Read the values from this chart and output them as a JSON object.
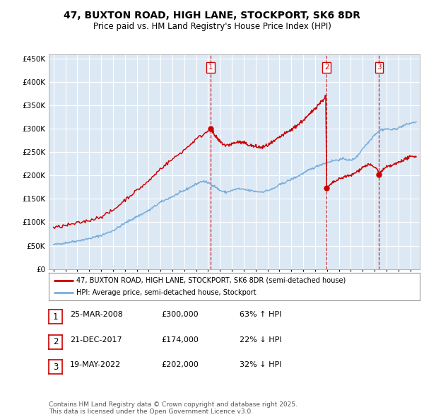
{
  "title": "47, BUXTON ROAD, HIGH LANE, STOCKPORT, SK6 8DR",
  "subtitle": "Price paid vs. HM Land Registry's House Price Index (HPI)",
  "ylim": [
    0,
    460000
  ],
  "yticks": [
    0,
    50000,
    100000,
    150000,
    200000,
    250000,
    300000,
    350000,
    400000,
    450000
  ],
  "ytick_labels": [
    "£0",
    "£50K",
    "£100K",
    "£150K",
    "£200K",
    "£250K",
    "£300K",
    "£350K",
    "£400K",
    "£450K"
  ],
  "xlim_left": 1994.6,
  "xlim_right": 2025.8,
  "chart_bg_color": "#dce9f5",
  "fig_bg_color": "#ffffff",
  "grid_color": "#ffffff",
  "red_color": "#cc0000",
  "blue_color": "#7aadda",
  "sale_dates": [
    2008.23,
    2017.97,
    2022.38
  ],
  "sale_prices": [
    300000,
    174000,
    202000
  ],
  "sale_labels": [
    "1",
    "2",
    "3"
  ],
  "legend_label_red": "47, BUXTON ROAD, HIGH LANE, STOCKPORT, SK6 8DR (semi-detached house)",
  "legend_label_blue": "HPI: Average price, semi-detached house, Stockport",
  "table_rows": [
    [
      "1",
      "25-MAR-2008",
      "£300,000",
      "63% ↑ HPI"
    ],
    [
      "2",
      "21-DEC-2017",
      "£174,000",
      "22% ↓ HPI"
    ],
    [
      "3",
      "19-MAY-2022",
      "£202,000",
      "32% ↓ HPI"
    ]
  ],
  "footer": "Contains HM Land Registry data © Crown copyright and database right 2025.\nThis data is licensed under the Open Government Licence v3.0.",
  "hpi_anchors": [
    [
      1995.0,
      52000
    ],
    [
      1996.0,
      56000
    ],
    [
      1997.0,
      60000
    ],
    [
      1998.0,
      65000
    ],
    [
      1999.0,
      72000
    ],
    [
      2000.0,
      82000
    ],
    [
      2001.0,
      98000
    ],
    [
      2002.0,
      112000
    ],
    [
      2003.0,
      125000
    ],
    [
      2004.0,
      143000
    ],
    [
      2005.0,
      155000
    ],
    [
      2006.0,
      168000
    ],
    [
      2007.0,
      182000
    ],
    [
      2007.5,
      188000
    ],
    [
      2008.0,
      185000
    ],
    [
      2008.5,
      178000
    ],
    [
      2009.0,
      168000
    ],
    [
      2009.5,
      164000
    ],
    [
      2010.0,
      168000
    ],
    [
      2010.5,
      172000
    ],
    [
      2011.0,
      170000
    ],
    [
      2011.5,
      168000
    ],
    [
      2012.0,
      166000
    ],
    [
      2012.5,
      165000
    ],
    [
      2013.0,
      168000
    ],
    [
      2013.5,
      172000
    ],
    [
      2014.0,
      180000
    ],
    [
      2014.5,
      186000
    ],
    [
      2015.0,
      192000
    ],
    [
      2015.5,
      198000
    ],
    [
      2016.0,
      205000
    ],
    [
      2016.5,
      212000
    ],
    [
      2017.0,
      218000
    ],
    [
      2017.5,
      224000
    ],
    [
      2018.0,
      228000
    ],
    [
      2018.5,
      232000
    ],
    [
      2019.0,
      234000
    ],
    [
      2019.5,
      236000
    ],
    [
      2020.0,
      232000
    ],
    [
      2020.5,
      240000
    ],
    [
      2021.0,
      258000
    ],
    [
      2021.5,
      272000
    ],
    [
      2022.0,
      288000
    ],
    [
      2022.5,
      298000
    ],
    [
      2023.0,
      300000
    ],
    [
      2023.5,
      298000
    ],
    [
      2024.0,
      302000
    ],
    [
      2024.5,
      308000
    ],
    [
      2025.0,
      312000
    ],
    [
      2025.5,
      315000
    ]
  ],
  "red_seg1_anchors": [
    [
      1995.0,
      88000
    ],
    [
      1996.0,
      93000
    ],
    [
      1997.0,
      98000
    ],
    [
      1998.0,
      104000
    ],
    [
      1999.0,
      112000
    ],
    [
      2000.0,
      125000
    ],
    [
      2001.0,
      148000
    ],
    [
      2002.0,
      168000
    ],
    [
      2003.0,
      188000
    ],
    [
      2004.0,
      215000
    ],
    [
      2005.0,
      235000
    ],
    [
      2006.0,
      255000
    ],
    [
      2007.0,
      278000
    ],
    [
      2007.8,
      292000
    ],
    [
      2008.23,
      300000
    ]
  ],
  "red_seg2_anchors": [
    [
      2008.23,
      300000
    ],
    [
      2008.6,
      284000
    ],
    [
      2009.0,
      272000
    ],
    [
      2009.5,
      264000
    ],
    [
      2010.0,
      268000
    ],
    [
      2010.5,
      272000
    ],
    [
      2011.0,
      270000
    ],
    [
      2011.5,
      265000
    ],
    [
      2012.0,
      262000
    ],
    [
      2012.5,
      260000
    ],
    [
      2013.0,
      265000
    ],
    [
      2013.5,
      272000
    ],
    [
      2014.0,
      282000
    ],
    [
      2014.5,
      290000
    ],
    [
      2015.0,
      298000
    ],
    [
      2015.5,
      308000
    ],
    [
      2016.0,
      318000
    ],
    [
      2016.5,
      330000
    ],
    [
      2017.0,
      345000
    ],
    [
      2017.5,
      358000
    ],
    [
      2017.9,
      370000
    ],
    [
      2017.97,
      174000
    ]
  ],
  "red_seg3_anchors": [
    [
      2017.97,
      174000
    ],
    [
      2018.2,
      178000
    ],
    [
      2018.5,
      185000
    ],
    [
      2019.0,
      192000
    ],
    [
      2019.5,
      198000
    ],
    [
      2020.0,
      200000
    ],
    [
      2020.5,
      208000
    ],
    [
      2021.0,
      218000
    ],
    [
      2021.5,
      224000
    ],
    [
      2022.0,
      218000
    ],
    [
      2022.3,
      212000
    ],
    [
      2022.38,
      202000
    ]
  ],
  "red_seg4_anchors": [
    [
      2022.38,
      202000
    ],
    [
      2022.6,
      210000
    ],
    [
      2023.0,
      218000
    ],
    [
      2023.5,
      222000
    ],
    [
      2024.0,
      228000
    ],
    [
      2024.5,
      235000
    ],
    [
      2025.0,
      240000
    ],
    [
      2025.5,
      242000
    ]
  ]
}
